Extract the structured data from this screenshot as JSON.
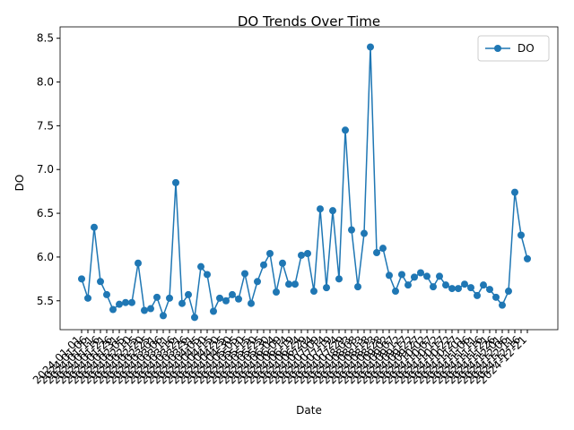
{
  "chart_data": {
    "type": "line",
    "title": "DO Trends Over Time",
    "xlabel": "Date",
    "ylabel": "DO",
    "categories": [
      "2024-01-01",
      "2024-01-06",
      "2024-01-11",
      "2024-01-16",
      "2024-01-21",
      "2024-01-26",
      "2024-01-31",
      "2024-02-05",
      "2024-02-10",
      "2024-02-15",
      "2024-02-20",
      "2024-02-25",
      "2024-03-01",
      "2024-03-06",
      "2024-03-11",
      "2024-03-16",
      "2024-03-21",
      "2024-03-26",
      "2024-03-31",
      "2024-04-05",
      "2024-04-10",
      "2024-04-15",
      "2024-04-20",
      "2024-04-25",
      "2024-04-30",
      "2024-05-05",
      "2024-05-10",
      "2024-05-15",
      "2024-05-20",
      "2024-05-25",
      "2024-05-30",
      "2024-06-04",
      "2024-06-09",
      "2024-06-14",
      "2024-06-19",
      "2024-06-24",
      "2024-06-29",
      "2024-07-04",
      "2024-07-09",
      "2024-07-14",
      "2024-07-19",
      "2024-07-24",
      "2024-07-29",
      "2024-08-03",
      "2024-08-08",
      "2024-08-13",
      "2024-08-18",
      "2024-08-23",
      "2024-08-28",
      "2024-09-02",
      "2024-09-07",
      "2024-09-12",
      "2024-09-17",
      "2024-09-22",
      "2024-09-27",
      "2024-10-02",
      "2024-10-07",
      "2024-10-12",
      "2024-10-17",
      "2024-10-22",
      "2024-10-27",
      "2024-11-01",
      "2024-11-06",
      "2024-11-11",
      "2024-11-16",
      "2024-11-21",
      "2024-11-26",
      "2024-12-01",
      "2024-12-06",
      "2024-12-11",
      "2024-12-16",
      "2024-12-21"
    ],
    "series": [
      {
        "name": "DO",
        "color": "#1f77b4",
        "values": [
          5.75,
          5.53,
          6.34,
          5.72,
          5.57,
          5.4,
          5.46,
          5.48,
          5.48,
          5.93,
          5.39,
          5.41,
          5.54,
          5.33,
          5.53,
          6.85,
          5.47,
          5.57,
          5.31,
          5.89,
          5.8,
          5.38,
          5.53,
          5.5,
          5.57,
          5.52,
          5.81,
          5.47,
          5.72,
          5.91,
          6.04,
          5.6,
          5.93,
          5.69,
          5.69,
          6.02,
          6.04,
          5.61,
          6.55,
          5.65,
          6.53,
          5.75,
          7.45,
          6.31,
          5.66,
          6.27,
          8.4,
          6.05,
          6.1,
          5.79,
          5.61,
          5.8,
          5.68,
          5.77,
          5.82,
          5.78,
          5.66,
          5.78,
          5.68,
          5.64,
          5.64,
          5.69,
          5.65,
          5.56,
          5.68,
          5.63,
          5.54,
          5.45,
          5.61,
          6.74,
          6.25,
          5.98
        ]
      }
    ],
    "ylim": [
      5.17,
      8.63
    ],
    "yticks": [
      5.5,
      {
        "value": 6,
        "label": "6.0"
      },
      6.5,
      {
        "value": 7,
        "label": "7.0"
      },
      7.5,
      {
        "value": 8,
        "label": "8.0"
      },
      8.5
    ],
    "legend": "upper right"
  }
}
